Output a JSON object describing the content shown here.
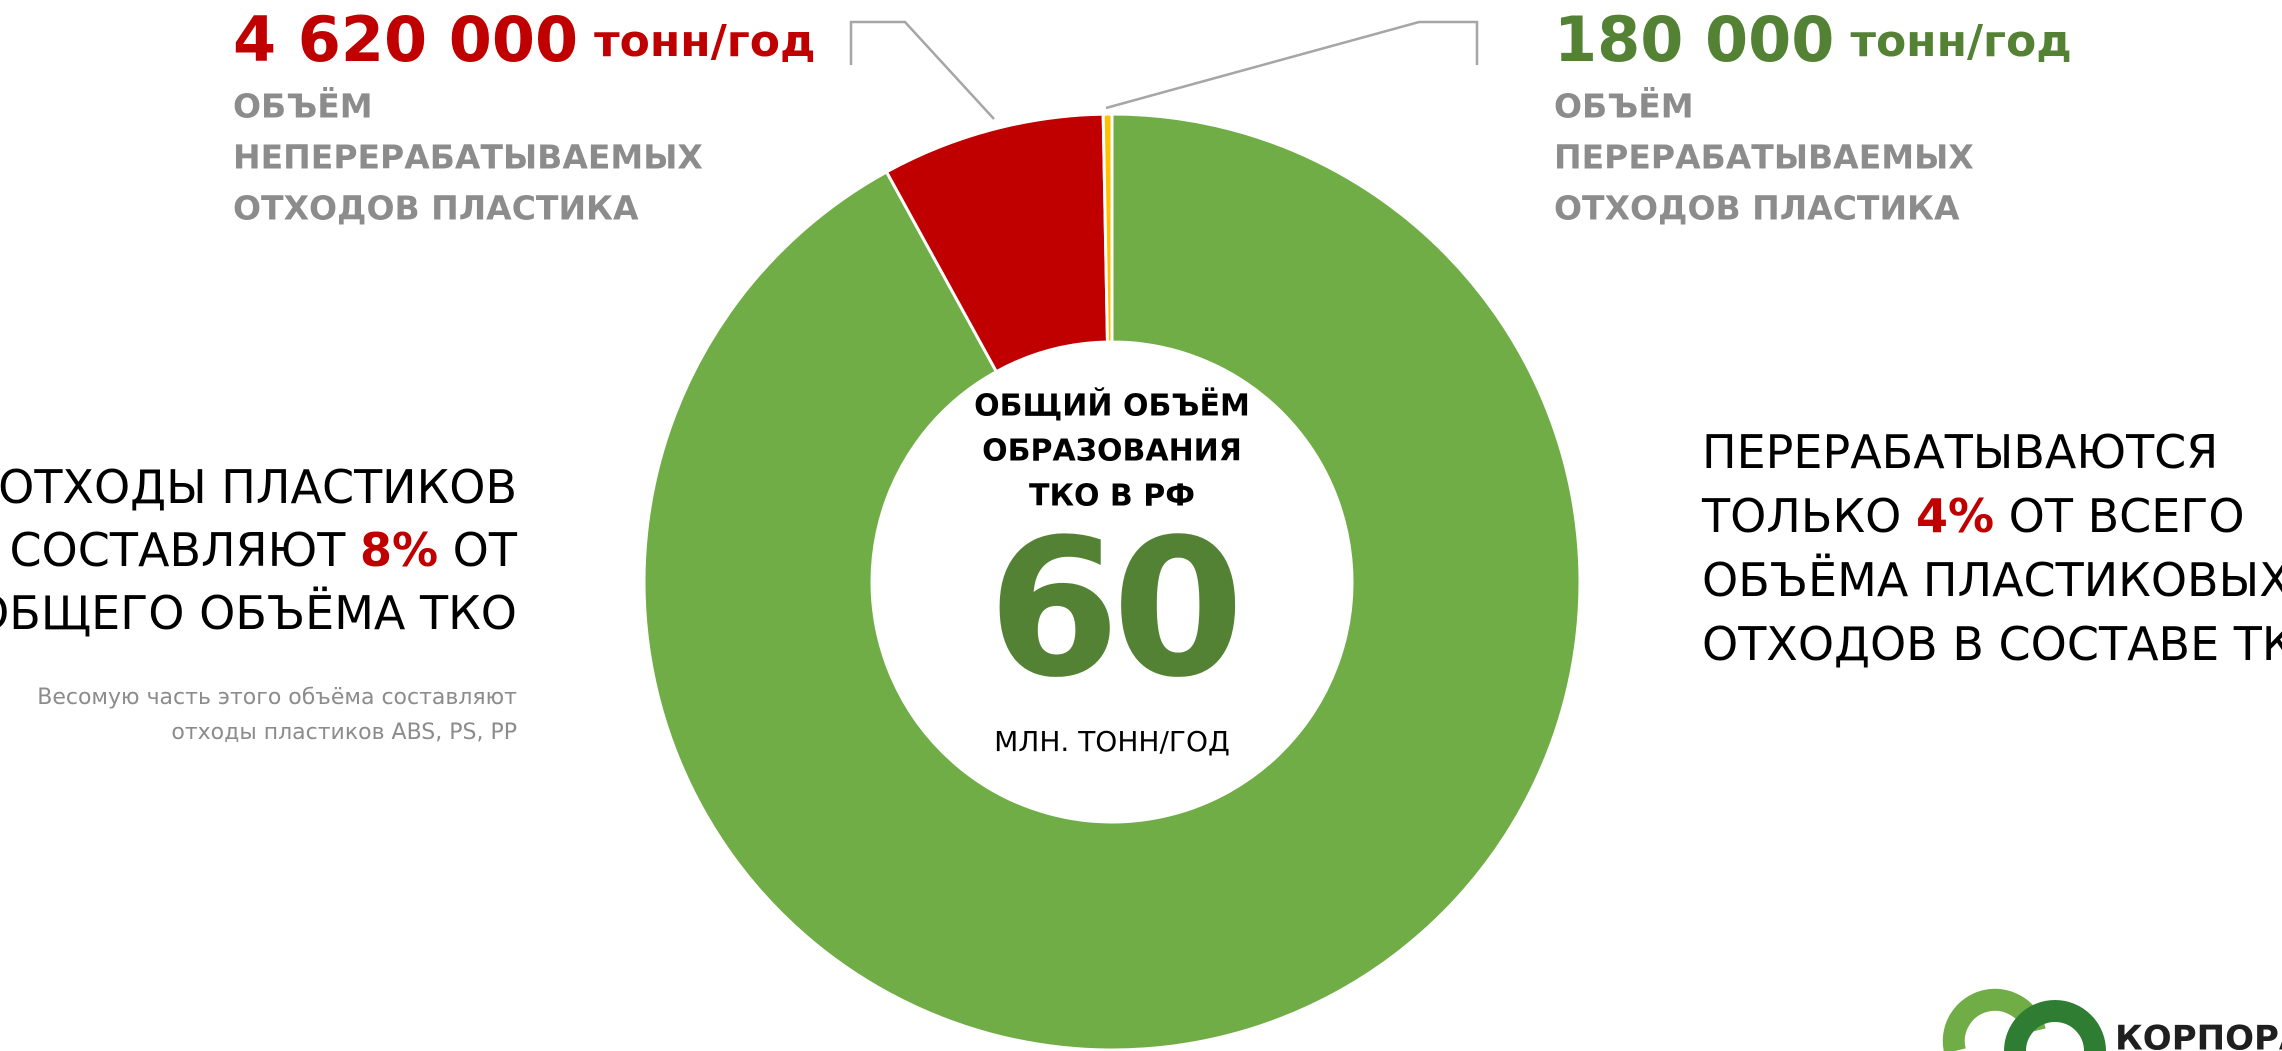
{
  "chart_data": {
    "type": "donut",
    "categories": [
      null,
      [
        "ОБЪЁМ",
        "НЕПЕРЕРАБАТЫВАЕМЫХ",
        "ОТХОДОВ ПЛАСТИКА"
      ],
      [
        "ОБЪЁМ",
        "ПЕРЕРАБАТЫВАЕМЫХ",
        "ОТХОДОВ ПЛАСТИКА"
      ]
    ],
    "values": [
      55200000,
      4620000,
      180000
    ],
    "value_labels": [
      null,
      "4 620 000",
      "180 000"
    ],
    "unit": "тонн/год",
    "colors": [
      "#70ad47",
      "#c00000",
      "#ffc000"
    ],
    "center": {
      "title": [
        "ОБЩИЙ ОБЪЁМ",
        "ОБРАЗОВАНИЯ",
        "ТКО В РФ"
      ],
      "value": 60,
      "unit": "МЛН. ТОНН/ГОД"
    },
    "left_note": [
      [
        [
          "ОТХОДЫ ПЛАСТИКОВ",
          "plain"
        ]
      ],
      [
        [
          "СОСТАВЛЯЮТ ",
          "plain"
        ],
        [
          "8%",
          "red"
        ],
        [
          " ОТ",
          "plain"
        ]
      ],
      [
        [
          "ОБЩЕГО ОБЪЁМА ТКО",
          "plain"
        ]
      ]
    ],
    "left_footnote": [
      "Весомую часть этого объёма составляют",
      "отходы пластиков ABS, PS, PP"
    ],
    "right_note": [
      [
        [
          "ПЕРЕРАБАТЫВАЮТСЯ",
          "plain"
        ]
      ],
      [
        [
          "ТОЛЬКО ",
          "plain"
        ],
        [
          "4%",
          "red"
        ],
        [
          " ОТ ВСЕГО",
          "plain"
        ]
      ],
      [
        [
          "ОБЪЁМА ПЛАСТИКОВЫХ",
          "plain"
        ]
      ],
      [
        [
          "ОТХОДОВ В СОСТАВЕ ТКО",
          "plain"
        ]
      ]
    ],
    "logo_text": "КОРПОРА"
  }
}
